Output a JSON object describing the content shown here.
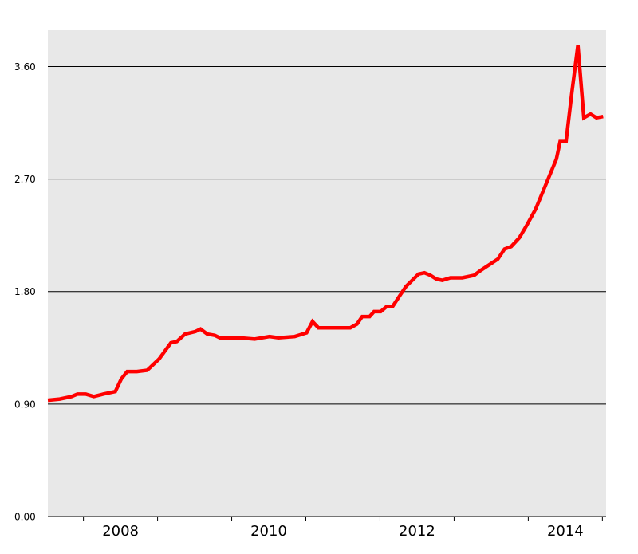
{
  "chart_data": {
    "type": "line",
    "x": [
      2007.52,
      2007.68,
      2007.84,
      2007.92,
      2008.03,
      2008.14,
      2008.27,
      2008.43,
      2008.51,
      2008.59,
      2008.72,
      2008.86,
      2009.02,
      2009.18,
      2009.26,
      2009.37,
      2009.51,
      2009.58,
      2009.67,
      2009.77,
      2009.84,
      2010.1,
      2010.31,
      2010.51,
      2010.63,
      2010.85,
      2011.01,
      2011.09,
      2011.17,
      2011.6,
      2011.69,
      2011.76,
      2011.86,
      2011.92,
      2012.01,
      2012.09,
      2012.17,
      2012.27,
      2012.35,
      2012.52,
      2012.6,
      2012.68,
      2012.76,
      2012.84,
      2012.95,
      2013.11,
      2013.27,
      2013.36,
      2013.59,
      2013.68,
      2013.77,
      2013.88,
      2013.97,
      2014.1,
      2014.24,
      2014.38,
      2014.43,
      2014.51,
      2014.59,
      2014.67,
      2014.75,
      2014.84,
      2014.92,
      2015.01
    ],
    "values": [
      0.93,
      0.94,
      0.96,
      0.98,
      0.98,
      0.96,
      0.98,
      1.0,
      1.1,
      1.16,
      1.16,
      1.17,
      1.26,
      1.39,
      1.4,
      1.46,
      1.48,
      1.5,
      1.46,
      1.45,
      1.43,
      1.43,
      1.42,
      1.44,
      1.43,
      1.44,
      1.47,
      1.56,
      1.51,
      1.51,
      1.54,
      1.6,
      1.6,
      1.64,
      1.64,
      1.68,
      1.68,
      1.77,
      1.84,
      1.94,
      1.95,
      1.93,
      1.9,
      1.89,
      1.91,
      1.91,
      1.93,
      1.97,
      2.06,
      2.14,
      2.16,
      2.23,
      2.32,
      2.46,
      2.66,
      2.86,
      3.0,
      3.0,
      3.4,
      3.77,
      3.19,
      3.22,
      3.19,
      3.2
    ],
    "color": "#ff0000",
    "xlim": [
      2007.52,
      2015.05
    ],
    "xticks": [
      {
        "value": 2008.5,
        "label": "2008"
      },
      {
        "value": 2010.5,
        "label": "2010"
      },
      {
        "value": 2012.5,
        "label": "2012"
      },
      {
        "value": 2014.5,
        "label": "2014"
      }
    ],
    "xtick_marks": [
      2008,
      2009,
      2010,
      2011,
      2012,
      2013,
      2014,
      2015
    ],
    "ylim": [
      0,
      3.89
    ],
    "yticks": [
      {
        "value": 0,
        "label": "0.00"
      },
      {
        "value": 0.9,
        "label": "0.90"
      },
      {
        "value": 1.8,
        "label": "1.80"
      },
      {
        "value": 2.7,
        "label": "2.70"
      },
      {
        "value": 3.6,
        "label": "3.60"
      }
    ],
    "grid": true
  }
}
